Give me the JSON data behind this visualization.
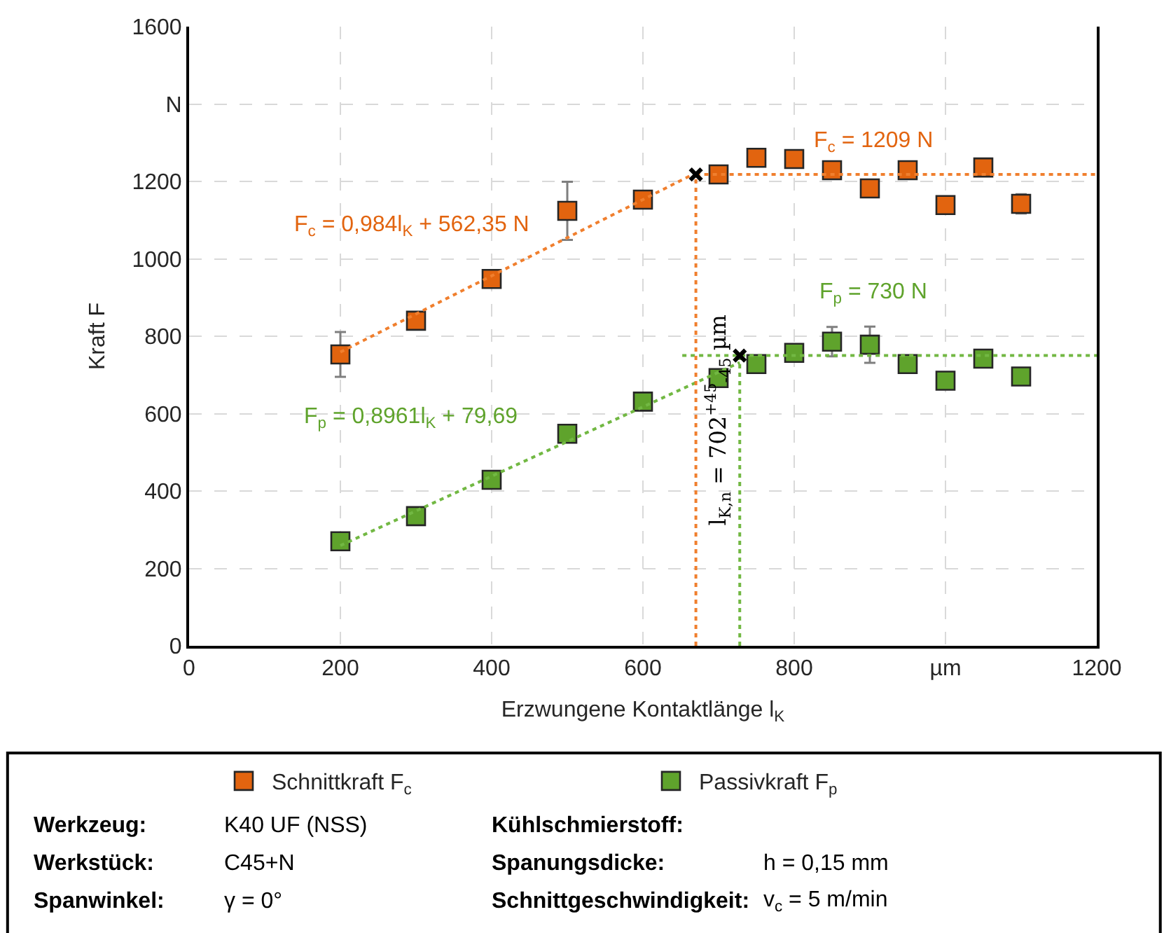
{
  "chart_data": {
    "type": "scatter",
    "xlabel": "Erzwungene Kontaktlänge l$_{K}$",
    "ylabel": "Kraft F",
    "xlim": [
      0,
      1200
    ],
    "xticks": [
      0,
      200,
      400,
      600,
      800,
      {
        "value": 1000,
        "label": "µm"
      },
      1200
    ],
    "ylim": [
      0,
      1600
    ],
    "yticks": [
      0,
      200,
      400,
      600,
      800,
      1000,
      1200,
      {
        "value": 1400,
        "label": "N"
      },
      1600
    ],
    "grid": true,
    "legend": "bottom",
    "marker": "square",
    "series": [
      {
        "name": "Schnittkraft F$_{c}$",
        "color": "#e2640f",
        "x": [
          200,
          300,
          400,
          500,
          600,
          700,
          750,
          800,
          850,
          900,
          950,
          1000,
          1050,
          1100
        ],
        "values": [
          753,
          840,
          948,
          1124,
          1153,
          1218,
          1261,
          1258,
          1229,
          1182,
          1229,
          1139,
          1236,
          1142
        ],
        "errors": [
          58,
          null,
          null,
          75,
          null,
          null,
          null,
          null,
          null,
          null,
          null,
          null,
          null,
          25
        ]
      },
      {
        "name": "Passivkraft F$_{p}$",
        "color": "#5fa32c",
        "x": [
          200,
          300,
          400,
          500,
          600,
          700,
          750,
          800,
          850,
          900,
          950,
          1000,
          1050,
          1100
        ],
        "values": [
          270,
          335,
          429,
          548,
          631,
          692,
          728,
          757,
          786,
          778,
          728,
          685,
          742,
          696
        ],
        "errors": [
          null,
          null,
          null,
          null,
          null,
          null,
          null,
          null,
          38,
          47,
          null,
          null,
          null,
          null
        ]
      },
      {
        "type": "line",
        "color": "#f07f2e",
        "line_style": "dotted",
        "marker": "none",
        "x": [
          200,
          670
        ],
        "values": [
          759,
          1222
        ]
      },
      {
        "type": "line",
        "color": "#72b843",
        "line_style": "dotted",
        "marker": "none",
        "x": [
          200,
          728
        ],
        "values": [
          259,
          732
        ]
      },
      {
        "type": "line",
        "color": "#f07f2e",
        "line_style": "dotted",
        "marker": "none",
        "x": [
          670,
          1200
        ],
        "values": [
          1218,
          1218
        ]
      },
      {
        "type": "line",
        "color": "#72b843",
        "line_style": "dotted",
        "marker": "none",
        "x": [
          652,
          1200
        ],
        "values": [
          750,
          750
        ]
      },
      {
        "type": "line",
        "color": "#f07f2e",
        "line_style": "dotted",
        "marker": "none",
        "x": [
          670,
          670
        ],
        "values": [
          0,
          1218
        ]
      },
      {
        "type": "line",
        "color": "#72b843",
        "line_style": "dotted",
        "marker": "none",
        "x": [
          728,
          728
        ],
        "values": [
          0,
          750
        ]
      },
      {
        "type": "scatter",
        "color": "#000000",
        "marker": "cross",
        "x": [
          670,
          728
        ],
        "values": [
          1218,
          750
        ]
      }
    ],
    "annotations": [
      "F$_{c}$ = 0,984l$_{K}$ + 562,35 N",
      "F$_{c}$ = 1209 N",
      "F$_{p}$ = 0,8961l$_{K}$ + 79,69",
      "F$_{p}$ = 730 N",
      "l$_{K,n}$ = 702$^{+45}$$_{-45}$ µm",
      "Werkzeug:",
      "Werkstück:",
      "Spanwinkel:",
      "K40 UF (NSS)",
      "C45+N",
      "γ = 0°",
      "Kühlschmierstoff:",
      "Spanungsdicke:",
      "Schnittgeschwindigkeit:",
      "h = 0,15 mm",
      "v$_{c}$ = 5 m/min"
    ]
  }
}
